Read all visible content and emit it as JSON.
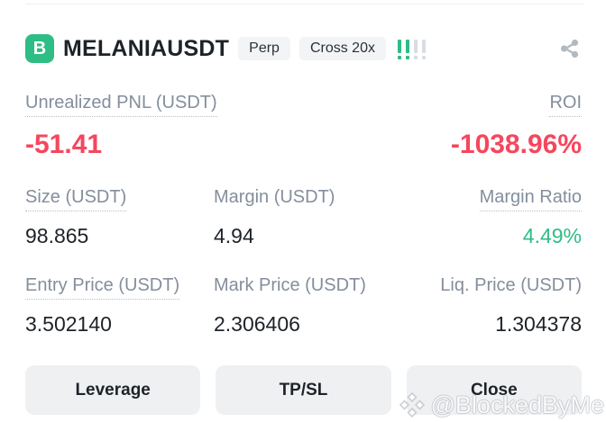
{
  "header": {
    "exchange_badge": "B",
    "symbol": "MELANIAUSDT",
    "contract_type_badge": "Perp",
    "margin_mode_badge": "Cross 20x",
    "risk_indicator": {
      "bars_total": 4,
      "bars_active": 2
    },
    "share_icon": "share-icon"
  },
  "metrics": {
    "unrealized_pnl": {
      "label": "Unrealized PNL (USDT)",
      "value": "-51.41"
    },
    "roi": {
      "label": "ROI",
      "value": "-1038.96%"
    },
    "size": {
      "label": "Size (USDT)",
      "value": "98.865"
    },
    "margin": {
      "label": "Margin (USDT)",
      "value": "4.94"
    },
    "margin_ratio": {
      "label": "Margin Ratio",
      "value": "4.49%"
    },
    "entry_price": {
      "label": "Entry Price (USDT)",
      "value": "3.502140"
    },
    "mark_price": {
      "label": "Mark Price (USDT)",
      "value": "2.306406"
    },
    "liq_price": {
      "label": "Liq. Price (USDT)",
      "value": "1.304378"
    }
  },
  "actions": {
    "leverage": "Leverage",
    "tpsl": "TP/SL",
    "close": "Close"
  },
  "watermark": "@BlockedByMe",
  "colors": {
    "negative_red": "#F6465D",
    "positive_green": "#2EBD85",
    "badge_green": "#2EBD85",
    "label_gray": "#848E9C",
    "text_dark": "#1E2329",
    "pill_bg": "#F3F4F6",
    "button_bg": "#EFF0F2",
    "risk_bar_inactive": "#D9DDE2"
  }
}
